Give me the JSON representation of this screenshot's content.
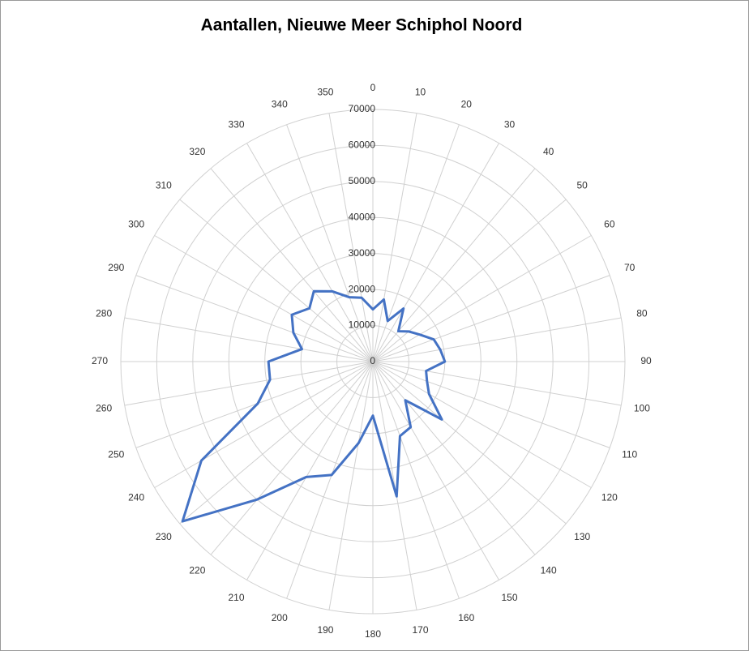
{
  "chart_data": {
    "type": "radar",
    "title": "Aantallen, Nieuwe Meer Schiphol Noord",
    "categories": [
      "0",
      "10",
      "20",
      "30",
      "40",
      "50",
      "60",
      "70",
      "80",
      "90",
      "100",
      "110",
      "120",
      "130",
      "140",
      "150",
      "160",
      "170",
      "180",
      "190",
      "200",
      "210",
      "220",
      "230",
      "240",
      "250",
      "260",
      "270",
      "280",
      "290",
      "300",
      "310",
      "320",
      "330",
      "340",
      "350"
    ],
    "series": [
      {
        "name": "Aantallen",
        "color": "#4472c4",
        "values": [
          14500,
          17500,
          12000,
          17000,
          11000,
          13000,
          15000,
          18000,
          19000,
          20000,
          15000,
          16000,
          18000,
          25000,
          14000,
          21000,
          22000,
          38000,
          15000,
          23000,
          33500,
          37000,
          50000,
          69000,
          55000,
          34000,
          29000,
          29000,
          20000,
          23500,
          26000,
          23000,
          25500,
          22500,
          19000,
          18000
        ]
      }
    ],
    "ylim": [
      0,
      70000
    ],
    "yticks": [
      0,
      10000,
      20000,
      30000,
      40000,
      50000,
      60000,
      70000
    ],
    "grid": true
  }
}
